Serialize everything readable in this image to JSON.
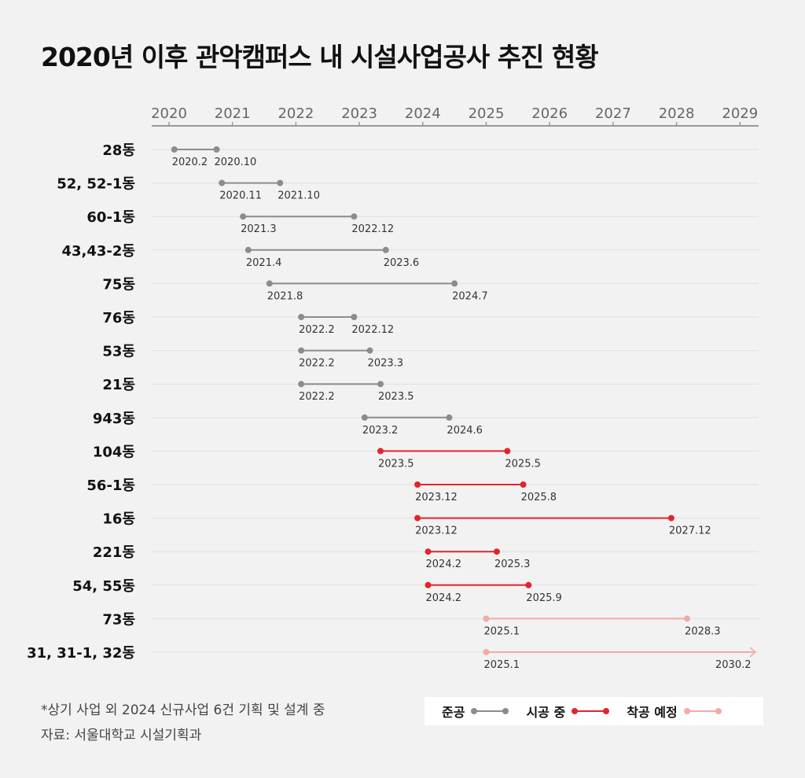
{
  "title": "2020년 이후 관악캠퍼스 내 시설사업공사 추진 현황",
  "notes": {
    "line1": "*상기 사업 외 2024 신규사업 6건 기획 및 설계 중",
    "line2": "자료: 서울대학교 시설기획과"
  },
  "legend": [
    {
      "label": "준공",
      "color": "#8c8c8c"
    },
    {
      "label": "시공 중",
      "color": "#e0262d"
    },
    {
      "label": "착공 예정",
      "color": "#f4aaa8"
    }
  ],
  "chart_data": {
    "type": "timeline",
    "title": "2020년 이후 관악캠퍼스 내 시설사업공사 추진 현황",
    "x_axis": {
      "ticks": [
        "2020",
        "2021",
        "2022",
        "2023",
        "2024",
        "2025",
        "2026",
        "2027",
        "2028",
        "2029"
      ],
      "range": [
        "2020.1",
        "2029.4"
      ]
    },
    "statuses": {
      "done": "준공",
      "ongoing": "시공 중",
      "planned": "착공 예정"
    },
    "rows": [
      {
        "building": "28동",
        "start": "2020.2",
        "end": "2020.10",
        "status": "done"
      },
      {
        "building": "52, 52-1동",
        "start": "2020.11",
        "end": "2021.10",
        "status": "done"
      },
      {
        "building": "60-1동",
        "start": "2021.3",
        "end": "2022.12",
        "status": "done"
      },
      {
        "building": "43,43-2동",
        "start": "2021.4",
        "end": "2023.6",
        "status": "done"
      },
      {
        "building": "75동",
        "start": "2021.8",
        "end": "2024.7",
        "status": "done"
      },
      {
        "building": "76동",
        "start": "2022.2",
        "end": "2022.12",
        "status": "done"
      },
      {
        "building": "53동",
        "start": "2022.2",
        "end": "2023.3",
        "status": "done"
      },
      {
        "building": "21동",
        "start": "2022.2",
        "end": "2023.5",
        "status": "done"
      },
      {
        "building": "943동",
        "start": "2023.2",
        "end": "2024.6",
        "status": "done"
      },
      {
        "building": "104동",
        "start": "2023.5",
        "end": "2025.5",
        "status": "ongoing"
      },
      {
        "building": "56-1동",
        "start": "2023.12",
        "end": "2025.8",
        "status": "ongoing"
      },
      {
        "building": "16동",
        "start": "2023.12",
        "end": "2027.12",
        "status": "ongoing"
      },
      {
        "building": "221동",
        "start": "2024.2",
        "end": "2025.3",
        "status": "ongoing"
      },
      {
        "building": "54, 55동",
        "start": "2024.2",
        "end": "2025.9",
        "status": "ongoing"
      },
      {
        "building": "73동",
        "start": "2025.1",
        "end": "2028.3",
        "status": "planned"
      },
      {
        "building": "31, 31-1, 32동",
        "start": "2025.1",
        "end": "2030.2",
        "status": "planned",
        "end_beyond_axis": true
      }
    ],
    "colors": {
      "done": "#8c8c8c",
      "ongoing": "#e0262d",
      "planned": "#f4aaa8"
    }
  }
}
